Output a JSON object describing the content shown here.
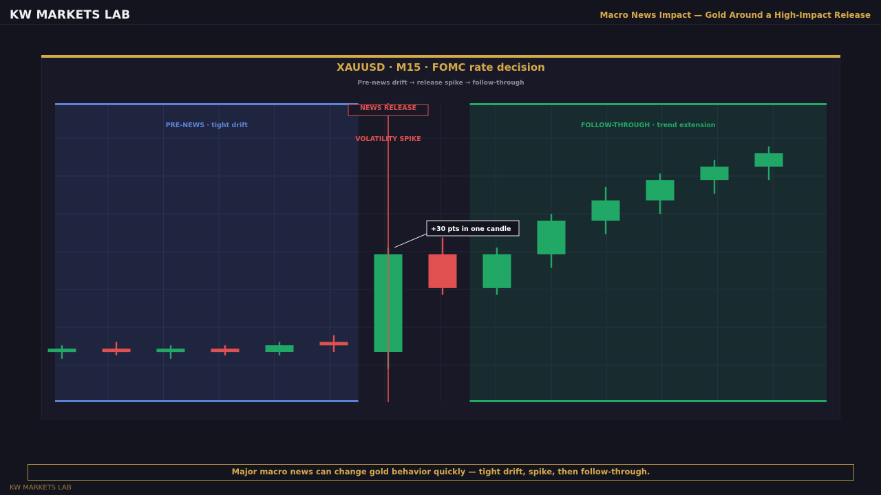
{
  "header": {
    "brand": "KW MARKETS LAB",
    "title": "Macro News Impact — Gold Around a High-Impact Release"
  },
  "footer": {
    "message": "Major macro news can change gold behavior quickly — tight drift, spike, then follow-through.",
    "brand": "KW MARKETS LAB"
  },
  "chart_data": {
    "type": "candlestick",
    "title": "XAUUSD · M15 · FOMC rate decision",
    "subtitle": "Pre-news drift → release spike → follow-through",
    "xlabel": "",
    "ylabel": "",
    "grid": true,
    "y_scale_units": "points",
    "regions": [
      {
        "name": "pre-news",
        "label": "PRE-NEWS · tight drift",
        "from_candle": 0,
        "to_candle": 5,
        "color": "#5b82d6"
      },
      {
        "name": "follow-through",
        "label": "FOLLOW-THROUGH · trend extension",
        "from_candle": 8,
        "to_candle": 13,
        "color": "#22a866"
      }
    ],
    "event": {
      "label": "NEWS RELEASE",
      "sublabel": "VOLATILITY SPIKE",
      "candle": 6,
      "color": "#e05050"
    },
    "annotation": {
      "text": "+30 pts in one candle",
      "candle": 6
    },
    "candles": [
      {
        "open": 0.0,
        "close": 1.0,
        "high": 2.0,
        "low": -2.0
      },
      {
        "open": 1.0,
        "close": 0.0,
        "high": 3.0,
        "low": -1.0
      },
      {
        "open": 0.0,
        "close": 1.0,
        "high": 2.0,
        "low": -2.0
      },
      {
        "open": 1.0,
        "close": 0.0,
        "high": 2.0,
        "low": -1.0
      },
      {
        "open": 0.0,
        "close": 2.0,
        "high": 3.0,
        "low": -1.0
      },
      {
        "open": 3.0,
        "close": 2.0,
        "high": 5.0,
        "low": 0.0
      },
      {
        "open": 0.0,
        "close": 29.0,
        "high": 31.0,
        "low": -5.0
      },
      {
        "open": 29.0,
        "close": 19.0,
        "high": 34.0,
        "low": 17.0
      },
      {
        "open": 19.0,
        "close": 29.0,
        "high": 31.0,
        "low": 17.0
      },
      {
        "open": 29.0,
        "close": 39.0,
        "high": 41.0,
        "low": 25.0
      },
      {
        "open": 39.0,
        "close": 45.0,
        "high": 49.0,
        "low": 35.0
      },
      {
        "open": 45.0,
        "close": 51.0,
        "high": 53.0,
        "low": 41.0
      },
      {
        "open": 51.0,
        "close": 55.0,
        "high": 57.0,
        "low": 47.0
      },
      {
        "open": 55.0,
        "close": 59.0,
        "high": 61.0,
        "low": 51.0
      }
    ],
    "colors": {
      "up": "#22a866",
      "down": "#e05050",
      "accent": "#d4a94a"
    }
  }
}
